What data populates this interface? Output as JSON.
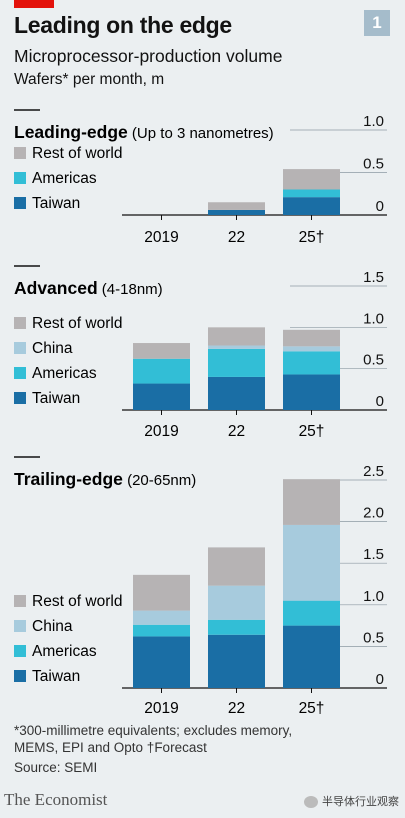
{
  "header": {
    "badge": "1",
    "title": "Leading on the edge",
    "subtitle": "Microprocessor-production volume",
    "units": "Wafers* per month, m"
  },
  "colors": {
    "taiwan": "#1a6ea5",
    "americas": "#32bed6",
    "china": "#a7cbdd",
    "rest_of_world": "#b6b3b4"
  },
  "chart_data": [
    {
      "type": "bar",
      "stacked": true,
      "title": "Leading-edge",
      "subtitle": "(Up to 3 nanometres)",
      "categories": [
        "2019",
        "22",
        "25†"
      ],
      "ylim": [
        0,
        1.0
      ],
      "yticks": [
        "0",
        "0.5",
        "1.0"
      ],
      "legend_placement": "left",
      "series": [
        {
          "name": "Taiwan",
          "key": "taiwan",
          "values": [
            0,
            0.06,
            0.21
          ]
        },
        {
          "name": "Americas",
          "key": "americas",
          "values": [
            0,
            0.0,
            0.09
          ]
        },
        {
          "name": "Rest of world",
          "key": "rest_of_world",
          "values": [
            0,
            0.09,
            0.24
          ]
        }
      ]
    },
    {
      "type": "bar",
      "stacked": true,
      "title": "Advanced",
      "subtitle": "(4-18nm)",
      "categories": [
        "2019",
        "22",
        "25†"
      ],
      "ylim": [
        0,
        1.5
      ],
      "yticks": [
        "0",
        "0.5",
        "1.0",
        "1.5"
      ],
      "legend_placement": "left",
      "series": [
        {
          "name": "Taiwan",
          "key": "taiwan",
          "values": [
            0.32,
            0.4,
            0.43
          ]
        },
        {
          "name": "Americas",
          "key": "americas",
          "values": [
            0.3,
            0.34,
            0.28
          ]
        },
        {
          "name": "China",
          "key": "china",
          "values": [
            0.0,
            0.04,
            0.06
          ]
        },
        {
          "name": "Rest of world",
          "key": "rest_of_world",
          "values": [
            0.19,
            0.22,
            0.2
          ]
        }
      ]
    },
    {
      "type": "bar",
      "stacked": true,
      "title": "Trailing-edge",
      "subtitle": "(20-65nm)",
      "categories": [
        "2019",
        "22",
        "25†"
      ],
      "ylim": [
        0,
        2.5
      ],
      "yticks": [
        "0",
        "0.5",
        "1.0",
        "1.5",
        "2.0",
        "2.5"
      ],
      "legend_placement": "left",
      "series": [
        {
          "name": "Taiwan",
          "key": "taiwan",
          "values": [
            0.62,
            0.64,
            0.75
          ]
        },
        {
          "name": "Americas",
          "key": "americas",
          "values": [
            0.14,
            0.18,
            0.3
          ]
        },
        {
          "name": "China",
          "key": "china",
          "values": [
            0.17,
            0.41,
            0.91
          ]
        },
        {
          "name": "Rest of world",
          "key": "rest_of_world",
          "values": [
            0.43,
            0.46,
            0.55
          ]
        }
      ]
    }
  ],
  "footer": {
    "footnote_line1": "*300-millimetre equivalents; excludes memory,",
    "footnote_line2": "MEMS, EPI and Opto   †Forecast",
    "source": "Source: SEMI",
    "brand": "The Economist",
    "wechat": "半导体行业观察"
  }
}
